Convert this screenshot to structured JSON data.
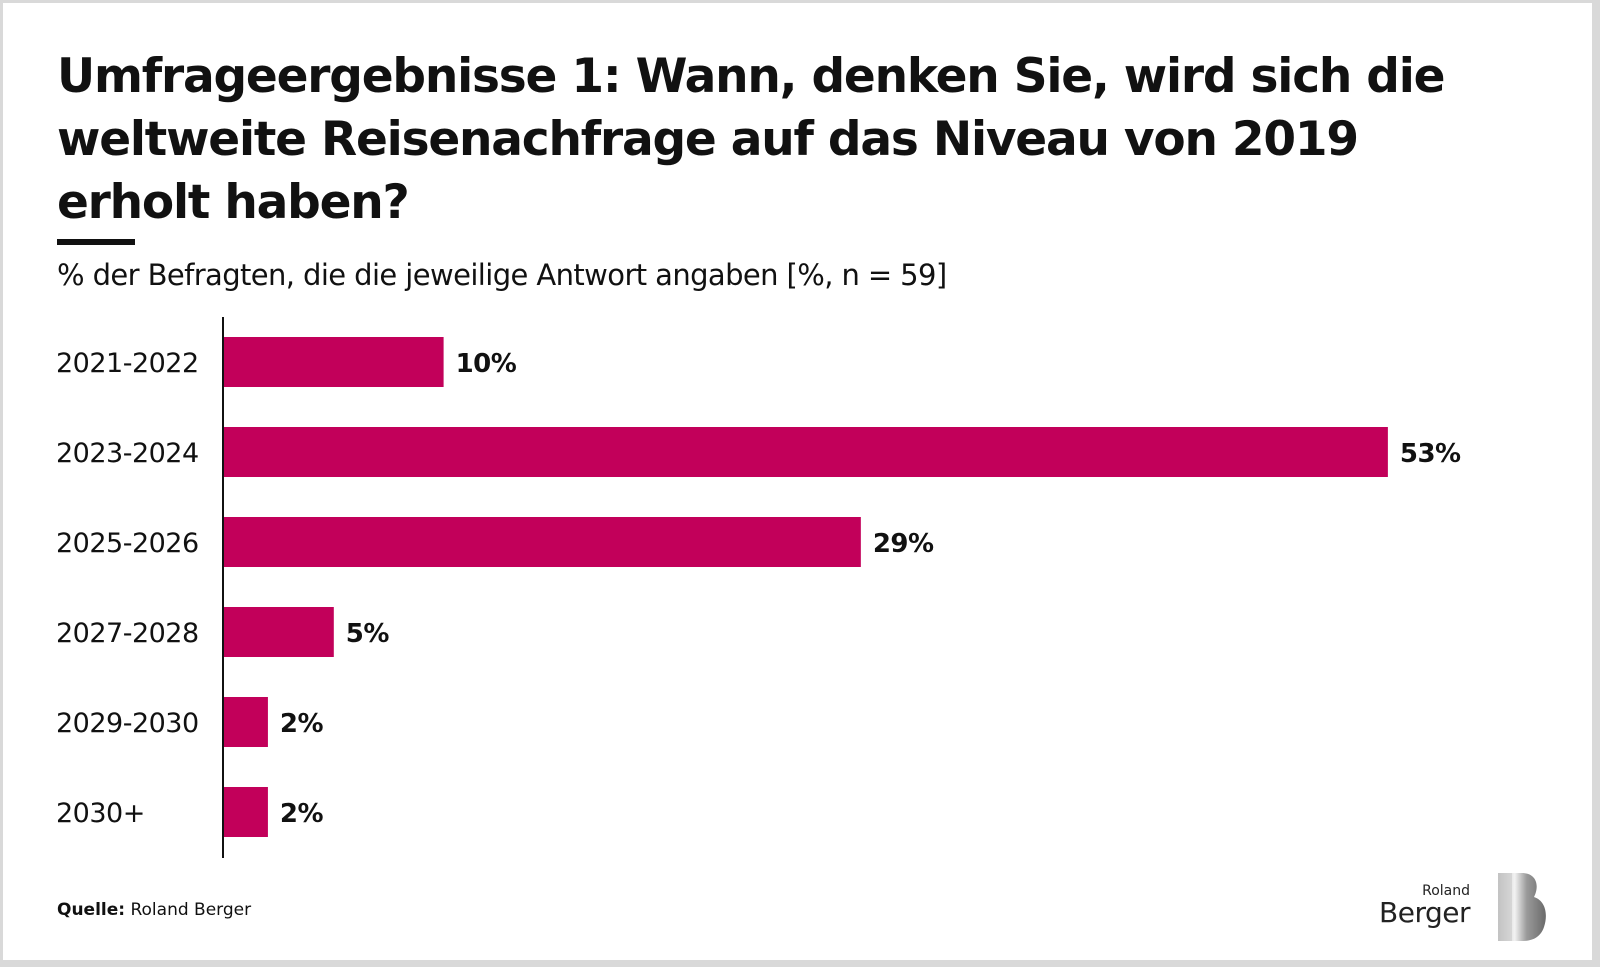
{
  "title": "Umfrageergebnisse 1: Wann, denken Sie, wird sich die weltweite Reisenachfrage auf das Niveau von 2019 erholt haben?",
  "subtitle": "% der Befragten, die die jeweilige Antwort angaben [%, n = 59]",
  "source": {
    "label": "Quelle:",
    "value": "Roland Berger"
  },
  "logo": {
    "line1": "Roland",
    "line2": "Berger"
  },
  "colors": {
    "bar": "#c2005a",
    "text": "#111111",
    "axis": "#111111"
  },
  "chart_data": {
    "type": "bar",
    "orientation": "horizontal",
    "title": "Umfrageergebnisse 1: Wann, denken Sie, wird sich die weltweite Reisenachfrage auf das Niveau von 2019 erholt haben?",
    "subtitle": "% der Befragten, die die jeweilige Antwort angaben [%, n = 59]",
    "categories": [
      "2021-2022",
      "2023-2024",
      "2025-2026",
      "2027-2028",
      "2029-2030",
      "2030+"
    ],
    "values": [
      10,
      53,
      29,
      5,
      2,
      2
    ],
    "data_labels": [
      "10%",
      "53%",
      "29%",
      "5%",
      "2%",
      "2%"
    ],
    "xlabel": "",
    "ylabel": "",
    "xlim": [
      0,
      53
    ],
    "grid": false,
    "legend": "none",
    "unit": "%"
  }
}
